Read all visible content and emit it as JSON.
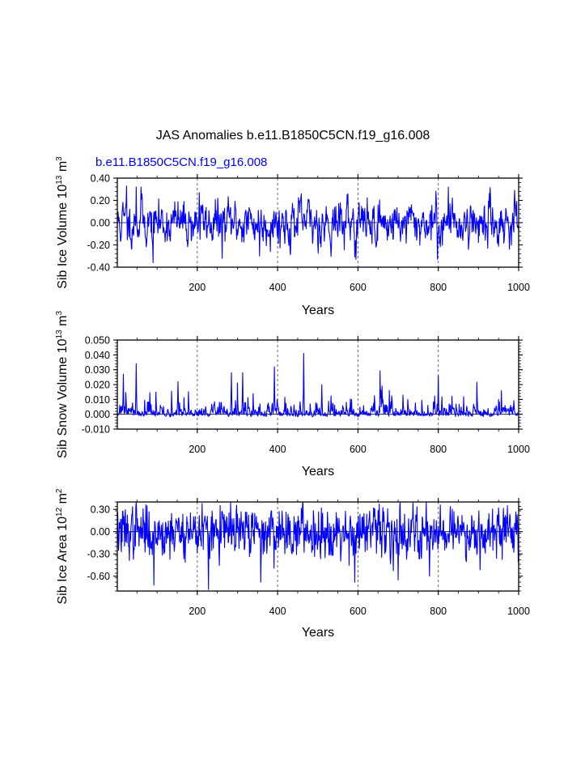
{
  "figure": {
    "main_title": "JAS Anomalies b.e11.B1850C5CN.f19_g16.008",
    "run_label": "b.e11.B1850C5CN.f19_g16.008",
    "run_label_color": "#0000ff",
    "line_color": "#0000ff",
    "ref_line_color": "#000000",
    "grid_color": "#555555"
  },
  "chart_data": [
    {
      "type": "line",
      "panel": "top",
      "title": "",
      "ylabel_main": "Sib Ice Volume 10",
      "ylabel_exp": "13",
      "ylabel_unit": " m",
      "ylabel_unit_exp": "3",
      "xlabel": "Years",
      "xlim": [
        1,
        1000
      ],
      "ylim": [
        -0.4,
        0.4
      ],
      "xticks": [
        200,
        400,
        600,
        800,
        1000
      ],
      "xtick_labels": [
        "200",
        "400",
        "600",
        "800",
        "1000"
      ],
      "yticks": [
        -0.4,
        -0.2,
        0.0,
        0.2,
        0.4
      ],
      "ytick_labels": [
        "-0.40",
        "-0.20",
        "0.00",
        "0.20",
        "0.40"
      ],
      "vlines": [
        200,
        400,
        600,
        800
      ],
      "series_seed": 11,
      "noise_sd": 0.085,
      "ar": 0.55,
      "clip": [
        -0.36,
        0.33
      ],
      "peaks": [
        {
          "x": 24,
          "y": 0.33
        },
        {
          "x": 48,
          "y": 0.32
        },
        {
          "x": 60,
          "y": 0.32
        },
        {
          "x": 90,
          "y": -0.36
        },
        {
          "x": 205,
          "y": 0.27
        },
        {
          "x": 262,
          "y": -0.32
        },
        {
          "x": 355,
          "y": -0.3
        },
        {
          "x": 575,
          "y": 0.26
        },
        {
          "x": 595,
          "y": -0.33
        },
        {
          "x": 798,
          "y": -0.33
        },
        {
          "x": 825,
          "y": 0.32
        },
        {
          "x": 990,
          "y": 0.29
        }
      ]
    },
    {
      "type": "line",
      "panel": "middle",
      "title": "",
      "ylabel_main": "Sib Snow Volume 10",
      "ylabel_exp": "13",
      "ylabel_unit": " m",
      "ylabel_unit_exp": "3",
      "xlabel": "Years",
      "xlim": [
        1,
        1000
      ],
      "ylim": [
        -0.01,
        0.05
      ],
      "xticks": [
        200,
        400,
        600,
        800,
        1000
      ],
      "xtick_labels": [
        "200",
        "400",
        "600",
        "800",
        "1000"
      ],
      "yticks": [
        -0.01,
        0.0,
        0.01,
        0.02,
        0.03,
        0.04,
        0.05
      ],
      "ytick_labels": [
        "-0.010",
        "0.000",
        "0.010",
        "0.020",
        "0.030",
        "0.040",
        "0.050"
      ],
      "vlines": [
        200,
        400,
        600,
        800
      ],
      "series_seed": 23,
      "noise_sd": 0.0045,
      "ar": 0.35,
      "skewed": true,
      "clip": [
        -0.0065,
        0.041
      ],
      "peaks": [
        {
          "x": 16,
          "y": 0.027
        },
        {
          "x": 48,
          "y": 0.034
        },
        {
          "x": 152,
          "y": 0.022
        },
        {
          "x": 285,
          "y": 0.028
        },
        {
          "x": 313,
          "y": 0.028
        },
        {
          "x": 392,
          "y": 0.032
        },
        {
          "x": 465,
          "y": 0.041
        },
        {
          "x": 510,
          "y": 0.02
        },
        {
          "x": 660,
          "y": 0.019
        },
        {
          "x": 800,
          "y": 0.026
        }
      ]
    },
    {
      "type": "line",
      "panel": "bottom",
      "title": "",
      "ylabel_main": "Sib Ice Area 10",
      "ylabel_exp": "12",
      "ylabel_unit": " m",
      "ylabel_unit_exp": "2",
      "xlabel": "Years",
      "xlim": [
        1,
        1000
      ],
      "ylim": [
        -0.8,
        0.4
      ],
      "xticks": [
        200,
        400,
        600,
        800,
        1000
      ],
      "xtick_labels": [
        "200",
        "400",
        "600",
        "800",
        "1000"
      ],
      "yticks": [
        -0.6,
        -0.3,
        0.0,
        0.3
      ],
      "ytick_labels": [
        "-0.60",
        "-0.30",
        "0.00",
        "0.30"
      ],
      "vlines": [
        200,
        400,
        600,
        800
      ],
      "series_seed": 37,
      "noise_sd": 0.16,
      "ar": 0.25,
      "clip": [
        -0.8,
        0.4
      ],
      "peaks": [
        {
          "x": 48,
          "y": 0.4
        },
        {
          "x": 92,
          "y": -0.72
        },
        {
          "x": 212,
          "y": 0.38
        },
        {
          "x": 228,
          "y": -0.78
        },
        {
          "x": 358,
          "y": -0.68
        },
        {
          "x": 592,
          "y": -0.68
        },
        {
          "x": 700,
          "y": -0.65
        },
        {
          "x": 778,
          "y": -0.6
        },
        {
          "x": 805,
          "y": 0.36
        },
        {
          "x": 830,
          "y": 0.34
        },
        {
          "x": 972,
          "y": 0.35
        }
      ]
    }
  ]
}
